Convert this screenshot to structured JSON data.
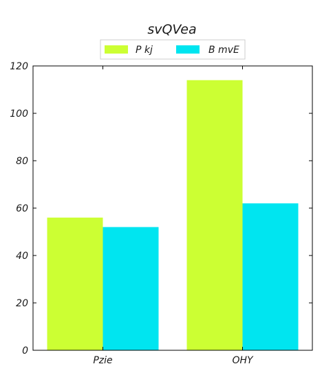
{
  "chart_data": {
    "type": "bar",
    "title": "svQVea",
    "xlabel": "",
    "ylabel": "",
    "categories": [
      "Pzie",
      "OHY"
    ],
    "series": [
      {
        "name": "P kj",
        "values": [
          56,
          114
        ],
        "color": "#ccff33"
      },
      {
        "name": "B mvE",
        "values": [
          52,
          62
        ],
        "color": "#00e5f0"
      }
    ],
    "ylim": [
      0,
      120
    ],
    "yticks": [
      0,
      20,
      40,
      60,
      80,
      100,
      120
    ],
    "grid": false,
    "legend_position": "top-center"
  }
}
